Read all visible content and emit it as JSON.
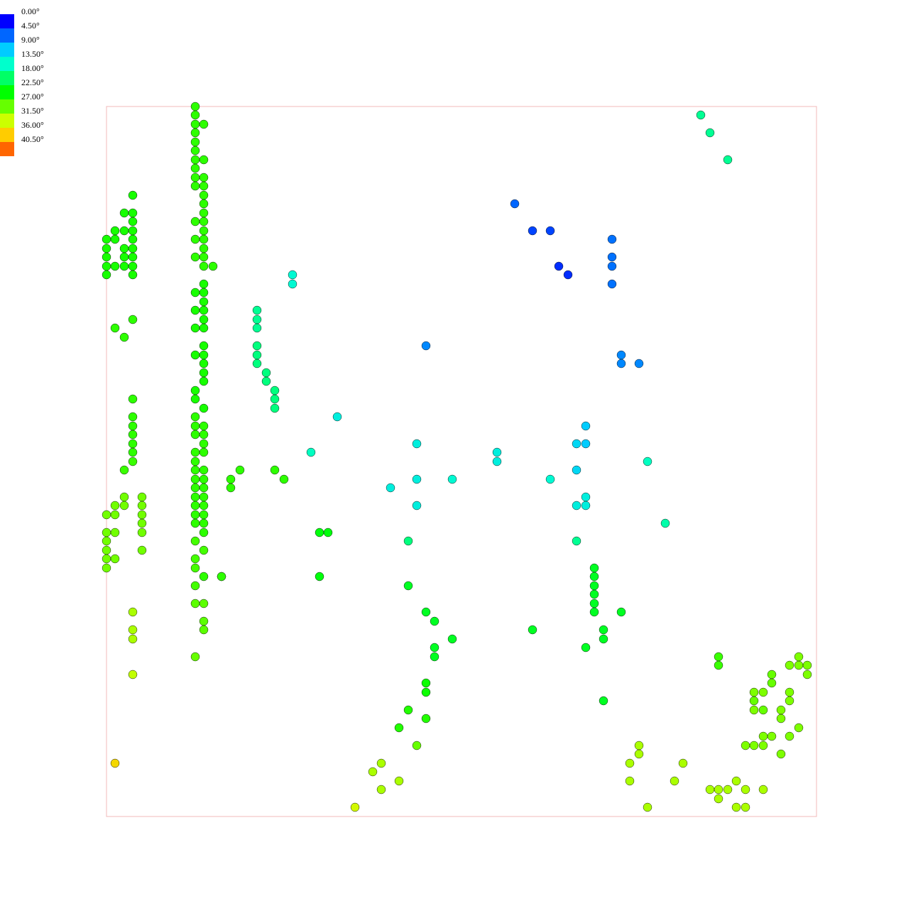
{
  "chart_data": {
    "type": "scatter",
    "title": "",
    "xlabel": "",
    "ylabel": "",
    "xlim": [
      0,
      1000
    ],
    "ylim": [
      0,
      1000
    ],
    "grid": false,
    "frame_color": "#f2b8b8",
    "legend": {
      "placement": "top-left",
      "unit": "°",
      "entries": [
        {
          "label": "0.00°",
          "value": 0.0,
          "color": "#0000ff"
        },
        {
          "label": "4.50°",
          "value": 4.5,
          "color": "#0066ff"
        },
        {
          "label": "9.00°",
          "value": 9.0,
          "color": "#00ccff"
        },
        {
          "label": "13.50°",
          "value": 13.5,
          "color": "#00ffcc"
        },
        {
          "label": "18.00°",
          "value": 18.0,
          "color": "#00ff66"
        },
        {
          "label": "22.50°",
          "value": 22.5,
          "color": "#00ff00"
        },
        {
          "label": "27.00°",
          "value": 27.0,
          "color": "#66ff00"
        },
        {
          "label": "31.50°",
          "value": 31.5,
          "color": "#ccff00"
        },
        {
          "label": "36.00°",
          "value": 36.0,
          "color": "#ffcc00"
        },
        {
          "label": "40.50°",
          "value": 40.5,
          "color": "#ff6600"
        }
      ]
    },
    "points": [
      [
        125,
        1000,
        24.5
      ],
      [
        125,
        988,
        24.5
      ],
      [
        125,
        975,
        24.5
      ],
      [
        137,
        975,
        24.5
      ],
      [
        125,
        963,
        24.5
      ],
      [
        125,
        950,
        24.5
      ],
      [
        125,
        938,
        24.5
      ],
      [
        125,
        925,
        24.5
      ],
      [
        137,
        925,
        24.5
      ],
      [
        125,
        913,
        24.5
      ],
      [
        125,
        900,
        24.5
      ],
      [
        137,
        900,
        24.5
      ],
      [
        125,
        888,
        24.5
      ],
      [
        137,
        888,
        24.5
      ],
      [
        137,
        875,
        24.5
      ],
      [
        137,
        863,
        24.5
      ],
      [
        137,
        850,
        24.5
      ],
      [
        125,
        838,
        24.5
      ],
      [
        137,
        838,
        24.5
      ],
      [
        137,
        825,
        24.5
      ],
      [
        125,
        813,
        24.5
      ],
      [
        137,
        813,
        24.5
      ],
      [
        137,
        800,
        24.5
      ],
      [
        125,
        788,
        24.5
      ],
      [
        137,
        788,
        24.5
      ],
      [
        137,
        775,
        24.5
      ],
      [
        150,
        775,
        24.5
      ],
      [
        137,
        750,
        23.5
      ],
      [
        125,
        738,
        23.5
      ],
      [
        137,
        738,
        23.5
      ],
      [
        137,
        725,
        23.5
      ],
      [
        125,
        713,
        23.5
      ],
      [
        137,
        713,
        23.5
      ],
      [
        137,
        700,
        23.5
      ],
      [
        125,
        688,
        23.5
      ],
      [
        137,
        688,
        23.5
      ],
      [
        137,
        663,
        23.5
      ],
      [
        125,
        650,
        23.5
      ],
      [
        137,
        650,
        23.5
      ],
      [
        137,
        638,
        23.5
      ],
      [
        137,
        625,
        23.5
      ],
      [
        137,
        613,
        23.5
      ],
      [
        125,
        600,
        23.5
      ],
      [
        125,
        588,
        23.5
      ],
      [
        137,
        575,
        23.5
      ],
      [
        125,
        563,
        24.5
      ],
      [
        125,
        550,
        24.5
      ],
      [
        137,
        550,
        24.5
      ],
      [
        125,
        538,
        24.5
      ],
      [
        137,
        538,
        24.5
      ],
      [
        137,
        525,
        24.5
      ],
      [
        125,
        513,
        24.5
      ],
      [
        137,
        513,
        24.5
      ],
      [
        125,
        500,
        24.5
      ],
      [
        125,
        488,
        24.5
      ],
      [
        137,
        488,
        24.5
      ],
      [
        125,
        475,
        24.5
      ],
      [
        137,
        475,
        24.5
      ],
      [
        125,
        463,
        24.5
      ],
      [
        137,
        463,
        24.5
      ],
      [
        125,
        450,
        24.5
      ],
      [
        137,
        450,
        24.5
      ],
      [
        125,
        438,
        24.5
      ],
      [
        137,
        438,
        24.5
      ],
      [
        125,
        425,
        24.5
      ],
      [
        137,
        425,
        24.5
      ],
      [
        125,
        413,
        24.5
      ],
      [
        137,
        413,
        24.5
      ],
      [
        137,
        400,
        24.5
      ],
      [
        125,
        388,
        25.5
      ],
      [
        137,
        375,
        25.5
      ],
      [
        125,
        363,
        25.5
      ],
      [
        125,
        350,
        25.5
      ],
      [
        137,
        338,
        24.5
      ],
      [
        162,
        338,
        24.5
      ],
      [
        125,
        325,
        25.5
      ],
      [
        125,
        300,
        26.5
      ],
      [
        137,
        300,
        26.5
      ],
      [
        137,
        275,
        26.5
      ],
      [
        137,
        263,
        26.5
      ],
      [
        125,
        225,
        27
      ],
      [
        37,
        875,
        23.5
      ],
      [
        25,
        850,
        23.5
      ],
      [
        37,
        850,
        23.5
      ],
      [
        37,
        838,
        23.5
      ],
      [
        12,
        825,
        23.5
      ],
      [
        25,
        825,
        23.5
      ],
      [
        37,
        825,
        23.5
      ],
      [
        0,
        813,
        23.5
      ],
      [
        12,
        813,
        23.5
      ],
      [
        37,
        813,
        23.5
      ],
      [
        0,
        800,
        23.5
      ],
      [
        25,
        800,
        23.5
      ],
      [
        37,
        800,
        23.5
      ],
      [
        0,
        788,
        23.5
      ],
      [
        25,
        788,
        23.5
      ],
      [
        37,
        788,
        23.5
      ],
      [
        0,
        775,
        23.5
      ],
      [
        12,
        775,
        23.5
      ],
      [
        25,
        775,
        23.5
      ],
      [
        37,
        775,
        23.5
      ],
      [
        0,
        763,
        23.5
      ],
      [
        37,
        763,
        23.5
      ],
      [
        37,
        700,
        24.5
      ],
      [
        12,
        688,
        24.5
      ],
      [
        25,
        675,
        24.5
      ],
      [
        37,
        588,
        24.5
      ],
      [
        37,
        563,
        24.5
      ],
      [
        37,
        550,
        24.5
      ],
      [
        37,
        538,
        24.5
      ],
      [
        37,
        525,
        24.5
      ],
      [
        37,
        513,
        24.5
      ],
      [
        37,
        500,
        25
      ],
      [
        25,
        488,
        25
      ],
      [
        25,
        450,
        27.5
      ],
      [
        50,
        450,
        27.5
      ],
      [
        12,
        438,
        27.5
      ],
      [
        25,
        438,
        27.5
      ],
      [
        50,
        438,
        27.5
      ],
      [
        0,
        425,
        27.5
      ],
      [
        12,
        425,
        27.5
      ],
      [
        50,
        425,
        27.5
      ],
      [
        50,
        413,
        27.5
      ],
      [
        0,
        400,
        27.5
      ],
      [
        12,
        400,
        27.5
      ],
      [
        50,
        400,
        27.5
      ],
      [
        0,
        388,
        27.5
      ],
      [
        0,
        375,
        27.5
      ],
      [
        50,
        375,
        27.5
      ],
      [
        0,
        363,
        27.5
      ],
      [
        12,
        363,
        27.5
      ],
      [
        0,
        350,
        27.5
      ],
      [
        37,
        288,
        30
      ],
      [
        37,
        263,
        30
      ],
      [
        37,
        250,
        30
      ],
      [
        37,
        200,
        31
      ],
      [
        12,
        75,
        35
      ],
      [
        175,
        475,
        24.5
      ],
      [
        175,
        463,
        24.5
      ],
      [
        188,
        488,
        24.5
      ],
      [
        237,
        488,
        24.5
      ],
      [
        250,
        475,
        24.5
      ],
      [
        162,
        338,
        24.5
      ],
      [
        300,
        400,
        22
      ],
      [
        312,
        400,
        22
      ],
      [
        300,
        338,
        22
      ],
      [
        212,
        713,
        16
      ],
      [
        212,
        700,
        16
      ],
      [
        212,
        688,
        16
      ],
      [
        212,
        663,
        17
      ],
      [
        212,
        650,
        17
      ],
      [
        212,
        638,
        17
      ],
      [
        225,
        625,
        17
      ],
      [
        225,
        613,
        17
      ],
      [
        237,
        600,
        17
      ],
      [
        237,
        588,
        17
      ],
      [
        237,
        575,
        17
      ],
      [
        262,
        763,
        13
      ],
      [
        262,
        750,
        13
      ],
      [
        325,
        563,
        12
      ],
      [
        437,
        525,
        12
      ],
      [
        288,
        513,
        14
      ],
      [
        400,
        463,
        12
      ],
      [
        437,
        438,
        12
      ],
      [
        437,
        475,
        12
      ],
      [
        487,
        475,
        13
      ],
      [
        550,
        500,
        12
      ],
      [
        550,
        513,
        12
      ],
      [
        625,
        475,
        13
      ],
      [
        662,
        488,
        10
      ],
      [
        662,
        525,
        10
      ],
      [
        675,
        550,
        9
      ],
      [
        675,
        525,
        9
      ],
      [
        675,
        450,
        12
      ],
      [
        675,
        438,
        12
      ],
      [
        662,
        438,
        12
      ],
      [
        762,
        500,
        14
      ],
      [
        662,
        388,
        16
      ],
      [
        425,
        388,
        17
      ],
      [
        787,
        413,
        15
      ],
      [
        450,
        663,
        6
      ],
      [
        725,
        650,
        6
      ],
      [
        750,
        638,
        6
      ],
      [
        575,
        863,
        4.5
      ],
      [
        600,
        825,
        3
      ],
      [
        625,
        825,
        3
      ],
      [
        637,
        775,
        2
      ],
      [
        650,
        763,
        2
      ],
      [
        712,
        813,
        5
      ],
      [
        712,
        788,
        5
      ],
      [
        712,
        775,
        5
      ],
      [
        712,
        750,
        5
      ],
      [
        725,
        638,
        6
      ],
      [
        837,
        988,
        16
      ],
      [
        850,
        963,
        16
      ],
      [
        875,
        925,
        16
      ],
      [
        687,
        350,
        21
      ],
      [
        687,
        338,
        21
      ],
      [
        687,
        325,
        21
      ],
      [
        687,
        313,
        21
      ],
      [
        687,
        300,
        21
      ],
      [
        687,
        288,
        21
      ],
      [
        725,
        288,
        21
      ],
      [
        700,
        263,
        21
      ],
      [
        700,
        250,
        21
      ],
      [
        675,
        238,
        21
      ],
      [
        600,
        263,
        21
      ],
      [
        700,
        163,
        21
      ],
      [
        425,
        325,
        21
      ],
      [
        450,
        288,
        21
      ],
      [
        462,
        275,
        21
      ],
      [
        487,
        250,
        21
      ],
      [
        462,
        238,
        21
      ],
      [
        462,
        225,
        21
      ],
      [
        450,
        188,
        23
      ],
      [
        450,
        175,
        23
      ],
      [
        425,
        150,
        24
      ],
      [
        450,
        138,
        24
      ],
      [
        412,
        125,
        24
      ],
      [
        437,
        100,
        27
      ],
      [
        862,
        225,
        25
      ],
      [
        862,
        213,
        25
      ],
      [
        937,
        200,
        27
      ],
      [
        937,
        188,
        27
      ],
      [
        912,
        163,
        27
      ],
      [
        925,
        150,
        27
      ],
      [
        962,
        213,
        28
      ],
      [
        975,
        213,
        28
      ],
      [
        987,
        213,
        28
      ],
      [
        975,
        225,
        28
      ],
      [
        987,
        200,
        28
      ],
      [
        912,
        175,
        28
      ],
      [
        925,
        175,
        28
      ],
      [
        962,
        175,
        28
      ],
      [
        962,
        163,
        28
      ],
      [
        950,
        150,
        28
      ],
      [
        912,
        150,
        28
      ],
      [
        950,
        138,
        28
      ],
      [
        975,
        125,
        28
      ],
      [
        937,
        113,
        28
      ],
      [
        925,
        113,
        28
      ],
      [
        925,
        100,
        28
      ],
      [
        900,
        100,
        28
      ],
      [
        912,
        100,
        28
      ],
      [
        962,
        113,
        28
      ],
      [
        950,
        88,
        28
      ],
      [
        750,
        100,
        30
      ],
      [
        750,
        88,
        30
      ],
      [
        737,
        75,
        30
      ],
      [
        812,
        75,
        30
      ],
      [
        737,
        50,
        30
      ],
      [
        800,
        50,
        30
      ],
      [
        850,
        38,
        30
      ],
      [
        862,
        38,
        30
      ],
      [
        875,
        38,
        30
      ],
      [
        900,
        38,
        30
      ],
      [
        925,
        38,
        30
      ],
      [
        862,
        25,
        30
      ],
      [
        887,
        50,
        30
      ],
      [
        887,
        13,
        30
      ],
      [
        900,
        13,
        30
      ],
      [
        762,
        13,
        30
      ],
      [
        387,
        75,
        30
      ],
      [
        375,
        63,
        30
      ],
      [
        387,
        38,
        30
      ],
      [
        412,
        50,
        30
      ],
      [
        350,
        13,
        32
      ]
    ]
  }
}
